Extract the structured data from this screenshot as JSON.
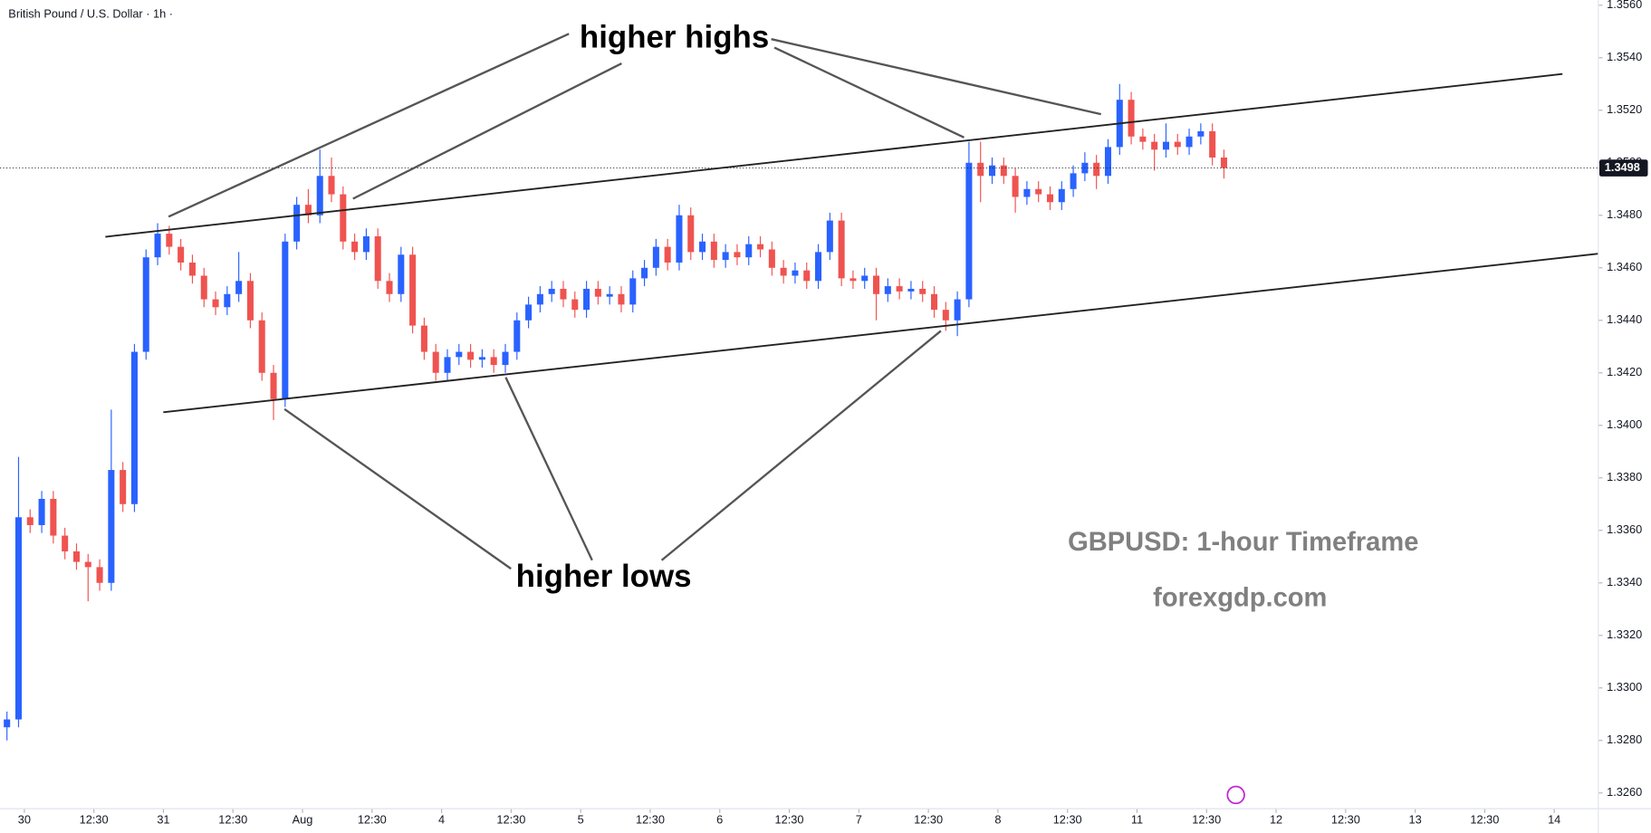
{
  "chart_data": {
    "type": "candlestick",
    "title": "British Pound / U.S. Dollar · 1h ·",
    "annotations": [
      "higher highs",
      "higher lows"
    ],
    "watermark": "GBPUSD: 1-hour Timeframe",
    "source": "forexgdp.com",
    "up_color": "#2962ff",
    "down_color": "#ef5350",
    "grid": false,
    "ylim": [
      1.3254,
      1.3562
    ],
    "yticks": [
      {
        "value": 1.326,
        "label": "1.3260"
      },
      {
        "value": 1.328,
        "label": "1.3280"
      },
      {
        "value": 1.33,
        "label": "1.3300"
      },
      {
        "value": 1.332,
        "label": "1.3320"
      },
      {
        "value": 1.334,
        "label": "1.3340"
      },
      {
        "value": 1.336,
        "label": "1.3360"
      },
      {
        "value": 1.338,
        "label": "1.3380"
      },
      {
        "value": 1.34,
        "label": "1.3400"
      },
      {
        "value": 1.342,
        "label": "1.3420"
      },
      {
        "value": 1.344,
        "label": "1.3440"
      },
      {
        "value": 1.346,
        "label": "1.3460"
      },
      {
        "value": 1.348,
        "label": "1.3480"
      },
      {
        "value": 1.35,
        "label": "1.3500"
      },
      {
        "value": 1.352,
        "label": "1.3520"
      },
      {
        "value": 1.354,
        "label": "1.3540"
      },
      {
        "value": 1.356,
        "label": "1.3560"
      }
    ],
    "last_price": {
      "value": 1.3498,
      "label": "1.3498"
    },
    "xlim": [
      -0.6,
      137.3
    ],
    "xticks": [
      {
        "value": 1.5,
        "label": "30"
      },
      {
        "value": 7.5,
        "label": "12:30"
      },
      {
        "value": 13.5,
        "label": "31"
      },
      {
        "value": 19.5,
        "label": "12:30"
      },
      {
        "value": 25.5,
        "label": "Aug"
      },
      {
        "value": 31.5,
        "label": "12:30"
      },
      {
        "value": 37.5,
        "label": "4"
      },
      {
        "value": 43.5,
        "label": "12:30"
      },
      {
        "value": 49.5,
        "label": "5"
      },
      {
        "value": 55.5,
        "label": "12:30"
      },
      {
        "value": 61.5,
        "label": "6"
      },
      {
        "value": 67.5,
        "label": "12:30"
      },
      {
        "value": 73.5,
        "label": "7"
      },
      {
        "value": 79.5,
        "label": "12:30"
      },
      {
        "value": 85.5,
        "label": "8"
      },
      {
        "value": 91.5,
        "label": "12:30"
      },
      {
        "value": 97.5,
        "label": "11"
      },
      {
        "value": 103.5,
        "label": "12:30"
      },
      {
        "value": 109.5,
        "label": "12"
      },
      {
        "value": 115.5,
        "label": "12:30"
      },
      {
        "value": 121.5,
        "label": "13"
      },
      {
        "value": 127.5,
        "label": "12:30"
      },
      {
        "value": 133.5,
        "label": "14"
      }
    ],
    "open": [
      1.3285,
      1.3288,
      1.3365,
      1.3362,
      1.3372,
      1.3358,
      1.3352,
      1.3348,
      1.3346,
      1.334,
      1.3383,
      1.337,
      1.3428,
      1.3464,
      1.3473,
      1.3468,
      1.3462,
      1.3457,
      1.3448,
      1.3445,
      1.345,
      1.3455,
      1.344,
      1.342,
      1.341,
      1.347,
      1.3484,
      1.348,
      1.3495,
      1.3488,
      1.347,
      1.3466,
      1.3472,
      1.3455,
      1.345,
      1.3465,
      1.3438,
      1.3428,
      1.342,
      1.3426,
      1.3428,
      1.3425,
      1.3426,
      1.3423,
      1.3428,
      1.344,
      1.3446,
      1.345,
      1.3452,
      1.3448,
      1.3444,
      1.3452,
      1.3449,
      1.345,
      1.3446,
      1.3456,
      1.346,
      1.3468,
      1.3462,
      1.348,
      1.3466,
      1.347,
      1.3463,
      1.3466,
      1.3464,
      1.3469,
      1.3467,
      1.346,
      1.3457,
      1.3459,
      1.3455,
      1.3466,
      1.3478,
      1.3456,
      1.3455,
      1.3457,
      1.345,
      1.3453,
      1.3451,
      1.3452,
      1.345,
      1.3444,
      1.344,
      1.3448,
      1.35,
      1.3495,
      1.3499,
      1.3495,
      1.3487,
      1.349,
      1.3488,
      1.3485,
      1.349,
      1.3496,
      1.35,
      1.3495,
      1.3506,
      1.3524,
      1.351,
      1.3508,
      1.3505,
      1.3508,
      1.3506,
      1.351,
      1.3512,
      1.3502
    ],
    "high": [
      1.3291,
      1.3388,
      1.3368,
      1.3375,
      1.3375,
      1.3361,
      1.3355,
      1.3351,
      1.3349,
      1.3406,
      1.3386,
      1.3431,
      1.3467,
      1.3477,
      1.3476,
      1.3471,
      1.3465,
      1.346,
      1.3451,
      1.3453,
      1.3466,
      1.3458,
      1.3443,
      1.3423,
      1.3473,
      1.3487,
      1.349,
      1.3505,
      1.3502,
      1.3491,
      1.3473,
      1.3475,
      1.3475,
      1.3458,
      1.3468,
      1.3468,
      1.3441,
      1.3431,
      1.3429,
      1.3431,
      1.3431,
      1.3429,
      1.3429,
      1.3431,
      1.3443,
      1.3449,
      1.3453,
      1.3455,
      1.3455,
      1.3451,
      1.3455,
      1.3455,
      1.3453,
      1.3453,
      1.3459,
      1.3463,
      1.3471,
      1.3471,
      1.3484,
      1.3483,
      1.3473,
      1.3473,
      1.3469,
      1.3469,
      1.3472,
      1.3472,
      1.347,
      1.3463,
      1.3462,
      1.3462,
      1.3469,
      1.3481,
      1.3481,
      1.3459,
      1.346,
      1.346,
      1.3456,
      1.3456,
      1.3455,
      1.3455,
      1.3453,
      1.3447,
      1.3451,
      1.3508,
      1.3508,
      1.3502,
      1.3502,
      1.3498,
      1.3493,
      1.3493,
      1.3491,
      1.3493,
      1.3499,
      1.3504,
      1.3503,
      1.3509,
      1.353,
      1.3527,
      1.3513,
      1.3511,
      1.3515,
      1.3511,
      1.3513,
      1.3515,
      1.3515,
      1.3505
    ],
    "low": [
      1.328,
      1.3285,
      1.3359,
      1.3359,
      1.3355,
      1.3349,
      1.3345,
      1.3333,
      1.3337,
      1.3337,
      1.3367,
      1.3367,
      1.3425,
      1.3461,
      1.3465,
      1.3459,
      1.3454,
      1.3445,
      1.3442,
      1.3442,
      1.3447,
      1.3437,
      1.3417,
      1.3402,
      1.3407,
      1.3467,
      1.3477,
      1.3477,
      1.3485,
      1.3467,
      1.3463,
      1.3463,
      1.3452,
      1.3447,
      1.3447,
      1.3435,
      1.3425,
      1.3417,
      1.3417,
      1.3423,
      1.3422,
      1.3422,
      1.342,
      1.342,
      1.3425,
      1.3437,
      1.3443,
      1.3447,
      1.3445,
      1.3441,
      1.3441,
      1.3446,
      1.3446,
      1.3443,
      1.3443,
      1.3453,
      1.3457,
      1.3459,
      1.3459,
      1.3463,
      1.3463,
      1.346,
      1.346,
      1.3461,
      1.3461,
      1.3464,
      1.3457,
      1.3454,
      1.3454,
      1.3452,
      1.3452,
      1.3463,
      1.3453,
      1.3452,
      1.3452,
      1.344,
      1.3447,
      1.3448,
      1.3448,
      1.3447,
      1.3441,
      1.3436,
      1.3434,
      1.3445,
      1.3485,
      1.3492,
      1.3492,
      1.3481,
      1.3484,
      1.3485,
      1.3482,
      1.3482,
      1.3487,
      1.3493,
      1.349,
      1.3492,
      1.3503,
      1.3507,
      1.3505,
      1.3497,
      1.3502,
      1.3503,
      1.3503,
      1.3507,
      1.3499,
      1.3494
    ],
    "close": [
      1.3288,
      1.3365,
      1.3362,
      1.3372,
      1.3358,
      1.3352,
      1.3348,
      1.3346,
      1.334,
      1.3383,
      1.337,
      1.3428,
      1.3464,
      1.3473,
      1.3468,
      1.3462,
      1.3457,
      1.3448,
      1.3445,
      1.345,
      1.3455,
      1.344,
      1.342,
      1.341,
      1.347,
      1.3484,
      1.348,
      1.3495,
      1.3488,
      1.347,
      1.3466,
      1.3472,
      1.3455,
      1.345,
      1.3465,
      1.3438,
      1.3428,
      1.342,
      1.3426,
      1.3428,
      1.3425,
      1.3426,
      1.3423,
      1.3428,
      1.344,
      1.3446,
      1.345,
      1.3452,
      1.3448,
      1.3444,
      1.3452,
      1.3449,
      1.345,
      1.3446,
      1.3456,
      1.346,
      1.3468,
      1.3462,
      1.348,
      1.3466,
      1.347,
      1.3463,
      1.3466,
      1.3464,
      1.3469,
      1.3467,
      1.346,
      1.3457,
      1.3459,
      1.3455,
      1.3466,
      1.3478,
      1.3456,
      1.3455,
      1.3457,
      1.345,
      1.3453,
      1.3451,
      1.3452,
      1.345,
      1.3444,
      1.344,
      1.3448,
      1.35,
      1.3495,
      1.3499,
      1.3495,
      1.3487,
      1.349,
      1.3488,
      1.3485,
      1.349,
      1.3496,
      1.35,
      1.3495,
      1.3506,
      1.3524,
      1.351,
      1.3508,
      1.3505,
      1.3508,
      1.3506,
      1.351,
      1.3512,
      1.3502,
      1.3498
    ]
  }
}
